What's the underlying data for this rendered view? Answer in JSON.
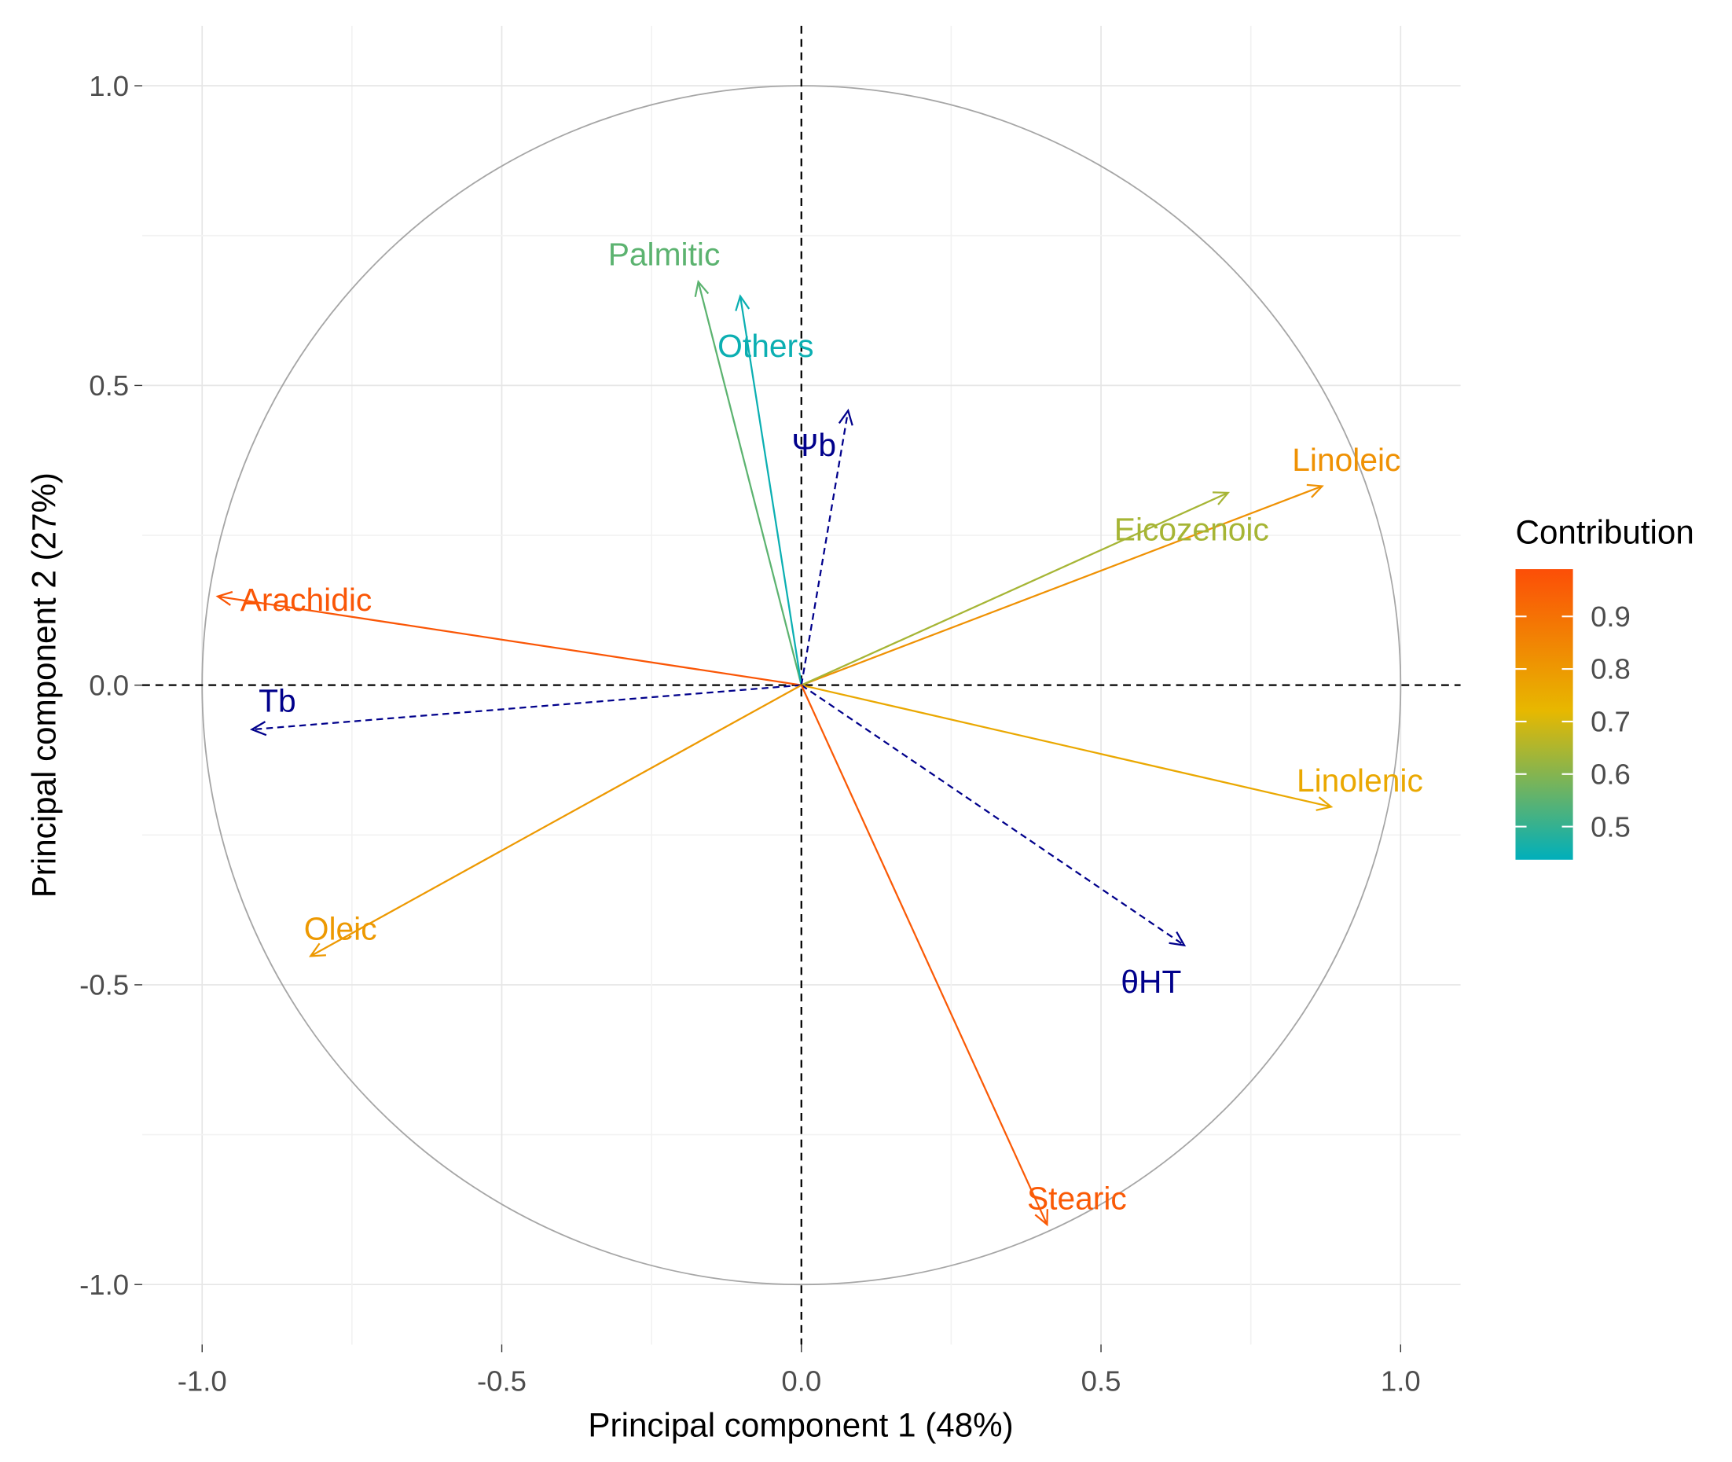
{
  "chart_data": {
    "type": "scatter",
    "subtype": "pca-variable-correlation-circle",
    "xlabel": "Principal component 1 (48%)",
    "ylabel": "Principal component 2 (27%)",
    "xlim": [
      -1.1,
      1.1
    ],
    "ylim": [
      -1.1,
      1.1
    ],
    "x_ticks": [
      "-1.0",
      "-0.5",
      "0.0",
      "0.5",
      "1.0"
    ],
    "y_ticks": [
      "-1.0",
      "-0.5",
      "0.0",
      "0.5",
      "1.0"
    ],
    "x_tick_values": [
      -1,
      -0.5,
      0,
      0.5,
      1
    ],
    "y_tick_values": [
      -1,
      -0.5,
      0,
      0.5,
      1
    ],
    "grid": true,
    "legend": {
      "title": "Contribution",
      "placement": "right",
      "ticks": [
        "0.9",
        "0.8",
        "0.7",
        "0.6",
        "0.5"
      ],
      "tick_values": [
        0.9,
        0.8,
        0.7,
        0.6,
        0.5
      ],
      "range": [
        0.437,
        0.99
      ],
      "colors": {
        "low": "#00AFBB",
        "mid": "#E7B800",
        "high": "#FC4E07"
      },
      "mid_value": 0.72
    },
    "supplementary_color": "#00008B",
    "variables": [
      {
        "name": "Palmitic",
        "x": -0.172,
        "y": 0.673,
        "contrib": 0.55,
        "supplementary": false
      },
      {
        "name": "Others",
        "x": -0.102,
        "y": 0.649,
        "contrib": 0.45,
        "supplementary": false
      },
      {
        "name": "Ψb",
        "x": 0.078,
        "y": 0.458,
        "supplementary": true
      },
      {
        "name": "Linoleic",
        "x": 0.869,
        "y": 0.332,
        "contrib": 0.82,
        "supplementary": false
      },
      {
        "name": "Eicozenoic",
        "x": 0.712,
        "y": 0.321,
        "contrib": 0.64,
        "supplementary": false
      },
      {
        "name": "Arachidic",
        "x": -0.974,
        "y": 0.148,
        "contrib": 0.97,
        "supplementary": false
      },
      {
        "name": "Tb",
        "x": -0.917,
        "y": -0.074,
        "supplementary": true
      },
      {
        "name": "Linolenic",
        "x": 0.884,
        "y": -0.203,
        "contrib": 0.76,
        "supplementary": false
      },
      {
        "name": "θHT",
        "x": 0.639,
        "y": -0.434,
        "supplementary": true
      },
      {
        "name": "Oleic",
        "x": -0.819,
        "y": -0.452,
        "contrib": 0.8,
        "supplementary": false
      },
      {
        "name": "Stearic",
        "x": 0.41,
        "y": -0.9,
        "contrib": 0.96,
        "supplementary": false
      }
    ]
  }
}
